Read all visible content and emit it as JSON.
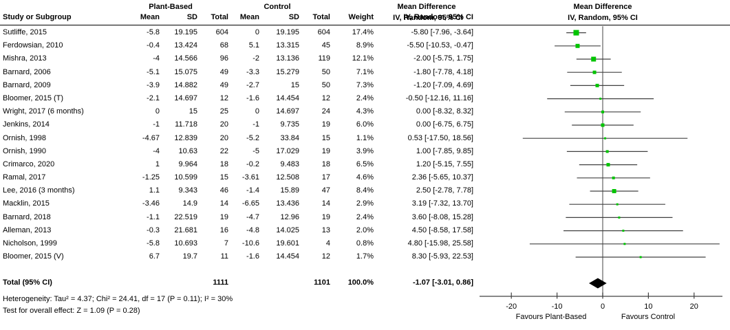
{
  "colors": {
    "square": "#00c400",
    "ci_line": "#404040",
    "zero_line": "#6e6e6e",
    "axis_line": "#404040",
    "diamond": "#000000",
    "text": "#000000",
    "separator": "#000000"
  },
  "header": {
    "study_col": "Study or Subgroup",
    "group_plant": "Plant-Based",
    "group_control": "Control",
    "mean": "Mean",
    "sd": "SD",
    "total": "Total",
    "weight": "Weight",
    "md_title": "Mean Difference",
    "md_sub": "IV, Random, 95% CI"
  },
  "chart_data": {
    "type": "forest",
    "effect_measure": "Mean Difference",
    "model": "IV, Random, 95% CI",
    "studies": [
      {
        "name": "Sutliffe, 2015",
        "pb_mean": "-5.8",
        "pb_sd": "19.195",
        "pb_total": "604",
        "c_mean": "0",
        "c_sd": "19.195",
        "c_total": "604",
        "weight": "17.4%",
        "ci_label": "-5.80 [-7.96, -3.64]",
        "md": -5.8,
        "lo": -7.96,
        "hi": -3.64
      },
      {
        "name": "Ferdowsian, 2010",
        "pb_mean": "-0.4",
        "pb_sd": "13.424",
        "pb_total": "68",
        "c_mean": "5.1",
        "c_sd": "13.315",
        "c_total": "45",
        "weight": "8.9%",
        "ci_label": "-5.50 [-10.53, -0.47]",
        "md": -5.5,
        "lo": -10.53,
        "hi": -0.47
      },
      {
        "name": "Mishra, 2013",
        "pb_mean": "-4",
        "pb_sd": "14.566",
        "pb_total": "96",
        "c_mean": "-2",
        "c_sd": "13.136",
        "c_total": "119",
        "weight": "12.1%",
        "ci_label": "-2.00 [-5.75, 1.75]",
        "md": -2,
        "lo": -5.75,
        "hi": 1.75
      },
      {
        "name": "Barnard, 2006",
        "pb_mean": "-5.1",
        "pb_sd": "15.075",
        "pb_total": "49",
        "c_mean": "-3.3",
        "c_sd": "15.279",
        "c_total": "50",
        "weight": "7.1%",
        "ci_label": "-1.80 [-7.78, 4.18]",
        "md": -1.8,
        "lo": -7.78,
        "hi": 4.18
      },
      {
        "name": "Barnard, 2009",
        "pb_mean": "-3.9",
        "pb_sd": "14.882",
        "pb_total": "49",
        "c_mean": "-2.7",
        "c_sd": "15",
        "c_total": "50",
        "weight": "7.3%",
        "ci_label": "-1.20 [-7.09, 4.69]",
        "md": -1.2,
        "lo": -7.09,
        "hi": 4.69
      },
      {
        "name": "Bloomer, 2015 (T)",
        "pb_mean": "-2.1",
        "pb_sd": "14.697",
        "pb_total": "12",
        "c_mean": "-1.6",
        "c_sd": "14.454",
        "c_total": "12",
        "weight": "2.4%",
        "ci_label": "-0.50 [-12.16, 11.16]",
        "md": -0.5,
        "lo": -12.16,
        "hi": 11.16
      },
      {
        "name": "Wright, 2017 (6 months)",
        "pb_mean": "0",
        "pb_sd": "15",
        "pb_total": "25",
        "c_mean": "0",
        "c_sd": "14.697",
        "c_total": "24",
        "weight": "4.3%",
        "ci_label": "0.00 [-8.32, 8.32]",
        "md": 0,
        "lo": -8.32,
        "hi": 8.32
      },
      {
        "name": "Jenkins, 2014",
        "pb_mean": "-1",
        "pb_sd": "11.718",
        "pb_total": "20",
        "c_mean": "-1",
        "c_sd": "9.735",
        "c_total": "19",
        "weight": "6.0%",
        "ci_label": "0.00 [-6.75, 6.75]",
        "md": 0,
        "lo": -6.75,
        "hi": 6.75
      },
      {
        "name": "Ornish, 1998",
        "pb_mean": "-4.67",
        "pb_sd": "12.839",
        "pb_total": "20",
        "c_mean": "-5.2",
        "c_sd": "33.84",
        "c_total": "15",
        "weight": "1.1%",
        "ci_label": "0.53 [-17.50, 18.56]",
        "md": 0.53,
        "lo": -17.5,
        "hi": 18.56
      },
      {
        "name": "Ornish, 1990",
        "pb_mean": "-4",
        "pb_sd": "10.63",
        "pb_total": "22",
        "c_mean": "-5",
        "c_sd": "17.029",
        "c_total": "19",
        "weight": "3.9%",
        "ci_label": "1.00 [-7.85, 9.85]",
        "md": 1,
        "lo": -7.85,
        "hi": 9.85
      },
      {
        "name": "Crimarco, 2020",
        "pb_mean": "1",
        "pb_sd": "9.964",
        "pb_total": "18",
        "c_mean": "-0.2",
        "c_sd": "9.483",
        "c_total": "18",
        "weight": "6.5%",
        "ci_label": "1.20 [-5.15, 7.55]",
        "md": 1.2,
        "lo": -5.15,
        "hi": 7.55
      },
      {
        "name": "Ramal, 2017",
        "pb_mean": "-1.25",
        "pb_sd": "10.599",
        "pb_total": "15",
        "c_mean": "-3.61",
        "c_sd": "12.508",
        "c_total": "17",
        "weight": "4.6%",
        "ci_label": "2.36 [-5.65, 10.37]",
        "md": 2.36,
        "lo": -5.65,
        "hi": 10.37
      },
      {
        "name": "Lee, 2016 (3 months)",
        "pb_mean": "1.1",
        "pb_sd": "9.343",
        "pb_total": "46",
        "c_mean": "-1.4",
        "c_sd": "15.89",
        "c_total": "47",
        "weight": "8.4%",
        "ci_label": "2.50 [-2.78, 7.78]",
        "md": 2.5,
        "lo": -2.78,
        "hi": 7.78
      },
      {
        "name": "Macklin, 2015",
        "pb_mean": "-3.46",
        "pb_sd": "14.9",
        "pb_total": "14",
        "c_mean": "-6.65",
        "c_sd": "13.436",
        "c_total": "14",
        "weight": "2.9%",
        "ci_label": "3.19 [-7.32, 13.70]",
        "md": 3.19,
        "lo": -7.32,
        "hi": 13.7
      },
      {
        "name": "Barnard, 2018",
        "pb_mean": "-1.1",
        "pb_sd": "22.519",
        "pb_total": "19",
        "c_mean": "-4.7",
        "c_sd": "12.96",
        "c_total": "19",
        "weight": "2.4%",
        "ci_label": "3.60 [-8.08, 15.28]",
        "md": 3.6,
        "lo": -8.08,
        "hi": 15.28
      },
      {
        "name": "Alleman, 2013",
        "pb_mean": "-0.3",
        "pb_sd": "21.681",
        "pb_total": "16",
        "c_mean": "-4.8",
        "c_sd": "14.025",
        "c_total": "13",
        "weight": "2.0%",
        "ci_label": "4.50 [-8.58, 17.58]",
        "md": 4.5,
        "lo": -8.58,
        "hi": 17.58
      },
      {
        "name": "Nicholson, 1999",
        "pb_mean": "-5.8",
        "pb_sd": "10.693",
        "pb_total": "7",
        "c_mean": "-10.6",
        "c_sd": "19.601",
        "c_total": "4",
        "weight": "0.8%",
        "ci_label": "4.80 [-15.98, 25.58]",
        "md": 4.8,
        "lo": -15.98,
        "hi": 25.58
      },
      {
        "name": "Bloomer, 2015 (V)",
        "pb_mean": "6.7",
        "pb_sd": "19.7",
        "pb_total": "11",
        "c_mean": "-1.6",
        "c_sd": "14.454",
        "c_total": "12",
        "weight": "1.7%",
        "ci_label": "8.30 [-5.93, 22.53]",
        "md": 8.3,
        "lo": -5.93,
        "hi": 22.53
      }
    ],
    "total": {
      "label": "Total (95% CI)",
      "pb_total": "1111",
      "c_total": "1101",
      "weight": "100.0%",
      "ci_label": "-1.07 [-3.01, 0.86]",
      "md": -1.07,
      "lo": -3.01,
      "hi": 0.86
    },
    "axis": {
      "ticks": [
        -20,
        -10,
        0,
        10,
        20
      ],
      "tick_labels": [
        "-20",
        "-10",
        "0",
        "10",
        "20"
      ],
      "favours_left": "Favours Plant-Based",
      "favours_right": "Favours Control"
    }
  },
  "footer": {
    "heterogeneity": "Heterogeneity: Tau² = 4.37; Chi² = 24.41, df = 17 (P = 0.11); I² = 30%",
    "overall_effect": "Test for overall effect: Z = 1.09 (P = 0.28)"
  }
}
